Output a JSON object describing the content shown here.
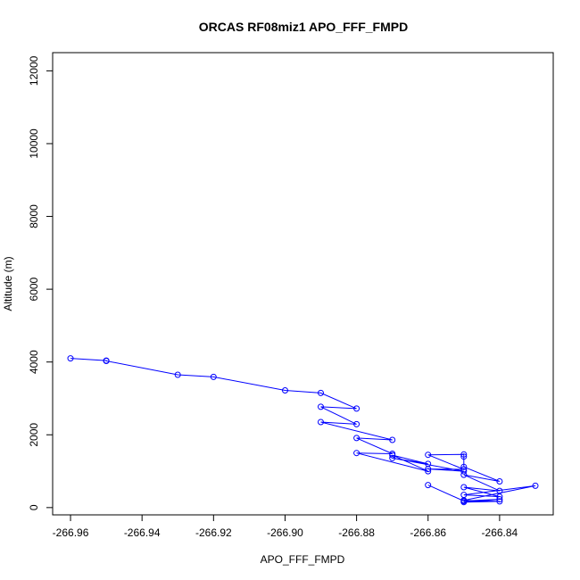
{
  "chart_data": {
    "type": "line",
    "title": "ORCAS RF08miz1 APO_FFF_FMPD",
    "xlabel": "APO_FFF_FMPD",
    "ylabel": "Altitude (m)",
    "xlim": [
      -266.965,
      -266.825
    ],
    "ylim": [
      -200,
      12500
    ],
    "xticks": [
      -266.96,
      -266.94,
      -266.92,
      -266.9,
      -266.88,
      -266.86,
      -266.84
    ],
    "yticks": [
      0,
      2000,
      4000,
      6000,
      8000,
      10000,
      12000
    ],
    "xtick_labels": [
      "-266.96",
      "-266.94",
      "-266.92",
      "-266.90",
      "-266.88",
      "-266.86",
      "-266.84"
    ],
    "ytick_labels": [
      "0",
      "2000",
      "4000",
      "6000",
      "8000",
      "10000",
      "12000"
    ],
    "series_color": "#0000ff",
    "points": [
      [
        -266.96,
        4100
      ],
      [
        -266.95,
        4040
      ],
      [
        -266.95,
        4030
      ],
      [
        -266.93,
        3650
      ],
      [
        -266.92,
        3590
      ],
      [
        -266.9,
        3220
      ],
      [
        -266.89,
        3150
      ],
      [
        -266.88,
        2720
      ],
      [
        -266.89,
        2770
      ],
      [
        -266.88,
        2290
      ],
      [
        -266.89,
        2350
      ],
      [
        -266.87,
        1860
      ],
      [
        -266.88,
        1910
      ],
      [
        -266.87,
        1480
      ],
      [
        -266.88,
        1500
      ],
      [
        -266.86,
        1000
      ],
      [
        -266.87,
        1440
      ],
      [
        -266.86,
        1200
      ],
      [
        -266.87,
        1360
      ],
      [
        -266.85,
        1000
      ],
      [
        -266.86,
        1060
      ],
      [
        -266.85,
        1050
      ],
      [
        -266.86,
        1450
      ],
      [
        -266.85,
        1460
      ],
      [
        -266.85,
        1400
      ],
      [
        -266.85,
        1120
      ],
      [
        -266.84,
        720
      ],
      [
        -266.85,
        900
      ],
      [
        -266.84,
        460
      ],
      [
        -266.85,
        560
      ],
      [
        -266.84,
        300
      ],
      [
        -266.85,
        350
      ],
      [
        -266.83,
        600
      ],
      [
        -266.85,
        200
      ],
      [
        -266.84,
        170
      ],
      [
        -266.85,
        150
      ],
      [
        -266.84,
        230
      ],
      [
        -266.85,
        180
      ],
      [
        -266.86,
        620
      ]
    ]
  }
}
